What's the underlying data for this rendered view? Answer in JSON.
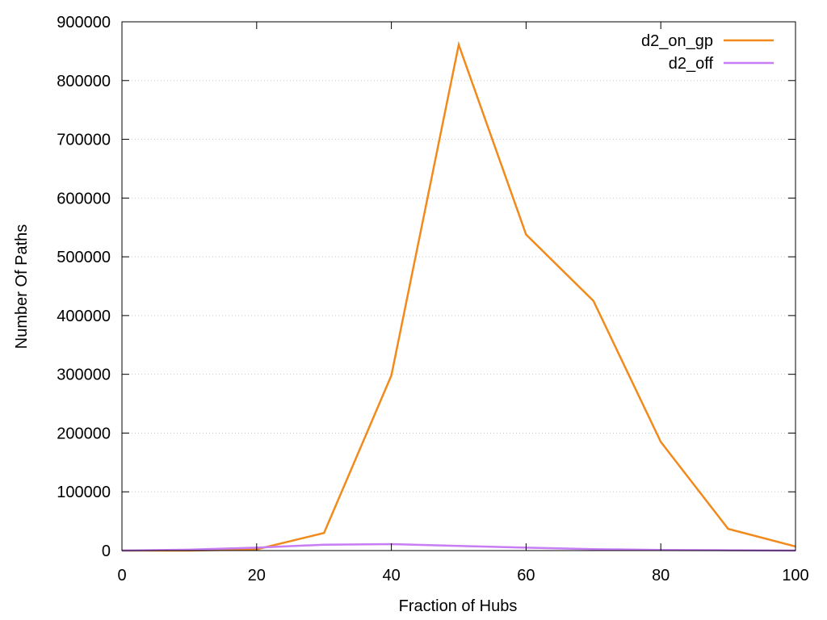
{
  "chart_data": {
    "type": "line",
    "title": "",
    "xlabel": "Fraction of Hubs",
    "ylabel": "Number Of Paths",
    "xlim": [
      0,
      100
    ],
    "ylim": [
      0,
      900000
    ],
    "xticks": [
      0,
      20,
      40,
      60,
      80,
      100
    ],
    "yticks": [
      0,
      100000,
      200000,
      300000,
      400000,
      500000,
      600000,
      700000,
      800000,
      900000
    ],
    "grid": "horizontal dotted",
    "legend_position": "top-right",
    "x": [
      0,
      10,
      20,
      30,
      40,
      50,
      60,
      70,
      80,
      90,
      100
    ],
    "series": [
      {
        "name": "d2_on_gp",
        "color": "#f28a1b",
        "values": [
          0,
          0,
          2000,
          30000,
          298000,
          861000,
          538000,
          425000,
          185000,
          37000,
          7000
        ]
      },
      {
        "name": "d2_off",
        "color": "#c77df3",
        "values": [
          0,
          1500,
          5000,
          10000,
          11000,
          8000,
          5000,
          2500,
          1000,
          500,
          0
        ]
      }
    ]
  }
}
